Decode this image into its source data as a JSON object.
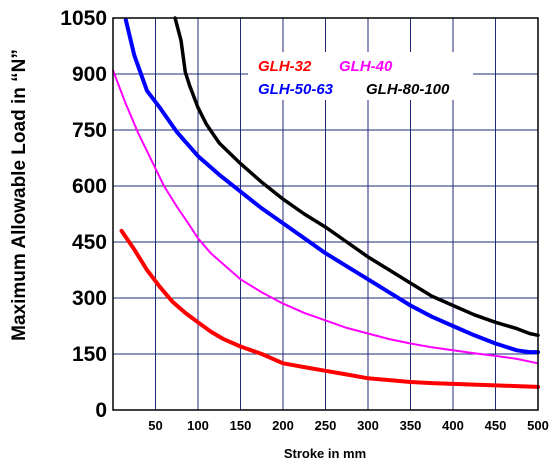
{
  "chart_data": {
    "type": "line",
    "title": "",
    "xlabel": "Stroke in mm",
    "ylabel": "Maximum Allowable Load in “N”",
    "xlim": [
      0,
      500
    ],
    "ylim": [
      0,
      1050
    ],
    "xticks": [
      "50",
      "100",
      "150",
      "200",
      "250",
      "300",
      "350",
      "400",
      "450",
      "500"
    ],
    "yticks": [
      "0",
      "150",
      "300",
      "450",
      "600",
      "750",
      "900",
      "1050"
    ],
    "grid": true,
    "legend_position": "top-right",
    "series": [
      {
        "name": "GLH-32",
        "color": "#ff0000",
        "x": [
          10,
          25,
          40,
          55,
          70,
          85,
          100,
          115,
          130,
          150,
          175,
          200,
          225,
          250,
          275,
          300,
          325,
          350,
          375,
          400,
          425,
          450,
          475,
          500
        ],
        "y": [
          480,
          430,
          375,
          330,
          290,
          260,
          235,
          210,
          190,
          170,
          150,
          125,
          115,
          105,
          95,
          85,
          80,
          75,
          72,
          70,
          68,
          66,
          64,
          62
        ]
      },
      {
        "name": "GLH-40",
        "color": "#ff00ff",
        "x": [
          0,
          15,
          30,
          45,
          60,
          75,
          90,
          100,
          115,
          130,
          150,
          175,
          200,
          225,
          250,
          275,
          300,
          325,
          350,
          375,
          400,
          425,
          450,
          475,
          500
        ],
        "y": [
          910,
          820,
          740,
          670,
          600,
          545,
          495,
          460,
          420,
          390,
          350,
          315,
          285,
          260,
          240,
          220,
          205,
          190,
          178,
          168,
          160,
          152,
          145,
          137,
          125
        ]
      },
      {
        "name": "GLH-50-63",
        "color": "#0000ff",
        "x": [
          15,
          25,
          40,
          55,
          75,
          100,
          125,
          150,
          175,
          200,
          225,
          250,
          275,
          300,
          325,
          350,
          375,
          400,
          425,
          450,
          475,
          490,
          500
        ],
        "y": [
          1045,
          950,
          855,
          810,
          745,
          680,
          630,
          585,
          540,
          500,
          460,
          420,
          385,
          350,
          315,
          280,
          250,
          225,
          200,
          178,
          160,
          155,
          155
        ]
      },
      {
        "name": "GLH-80-100",
        "color": "#000000",
        "x": [
          73,
          80,
          85,
          90,
          100,
          110,
          125,
          150,
          175,
          200,
          225,
          250,
          275,
          300,
          325,
          350,
          375,
          400,
          425,
          450,
          475,
          490,
          500
        ],
        "y": [
          1050,
          990,
          905,
          870,
          810,
          765,
          715,
          660,
          610,
          565,
          525,
          490,
          450,
          410,
          375,
          340,
          305,
          280,
          255,
          235,
          218,
          205,
          200
        ]
      }
    ]
  }
}
